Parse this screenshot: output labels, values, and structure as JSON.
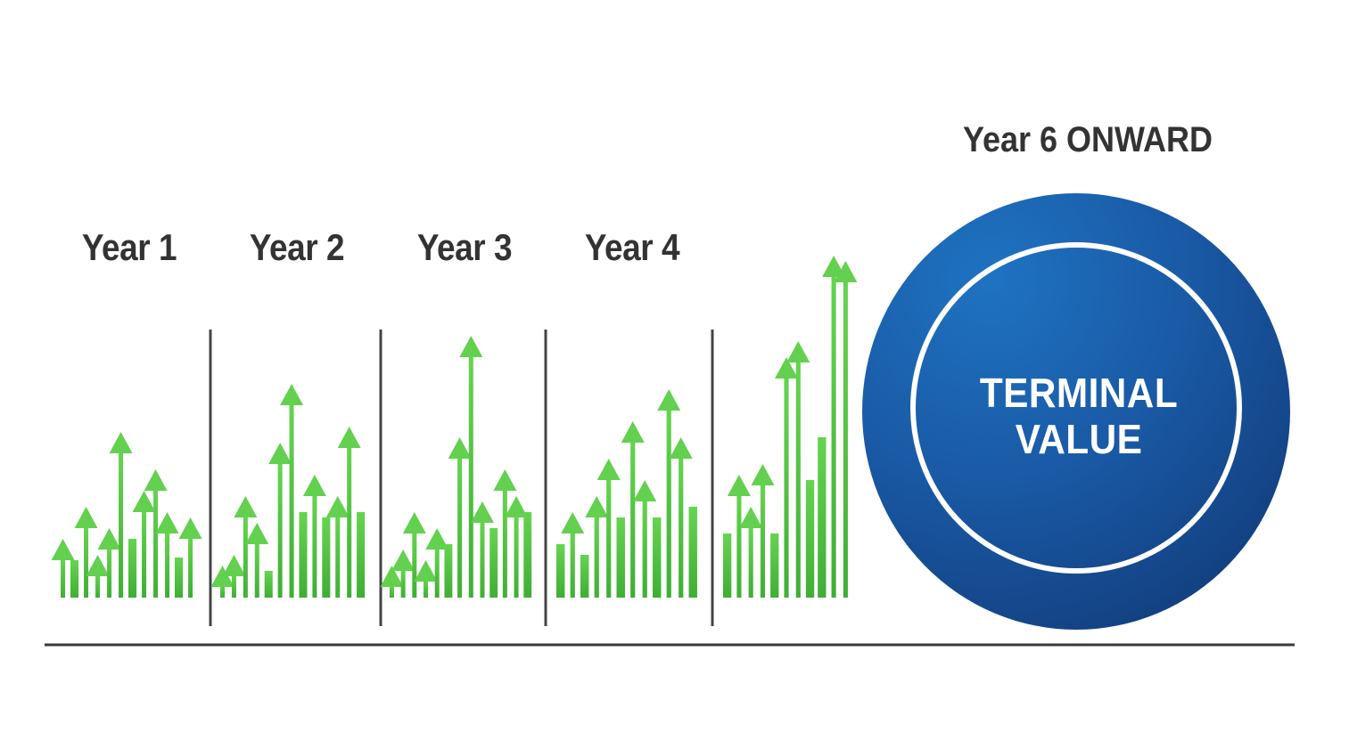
{
  "periods": [
    {
      "label": "Year 1",
      "bars": [
        {
          "h": 0.2,
          "arrow": true
        },
        {
          "h": 0.14,
          "arrow": false
        },
        {
          "h": 0.32,
          "arrow": true
        },
        {
          "h": 0.14,
          "arrow": true
        },
        {
          "h": 0.24,
          "arrow": true
        },
        {
          "h": 0.6,
          "arrow": true
        },
        {
          "h": 0.22,
          "arrow": false
        },
        {
          "h": 0.38,
          "arrow": true
        },
        {
          "h": 0.46,
          "arrow": true
        },
        {
          "h": 0.3,
          "arrow": true
        },
        {
          "h": 0.15,
          "arrow": false
        },
        {
          "h": 0.28,
          "arrow": true
        }
      ]
    },
    {
      "label": "Year 2",
      "bars": [
        {
          "h": 0.1,
          "arrow": true
        },
        {
          "h": 0.14,
          "arrow": true
        },
        {
          "h": 0.36,
          "arrow": true
        },
        {
          "h": 0.26,
          "arrow": true
        },
        {
          "h": 0.1,
          "arrow": false
        },
        {
          "h": 0.56,
          "arrow": true
        },
        {
          "h": 0.78,
          "arrow": true
        },
        {
          "h": 0.32,
          "arrow": false
        },
        {
          "h": 0.44,
          "arrow": true
        },
        {
          "h": 0.3,
          "arrow": false
        },
        {
          "h": 0.36,
          "arrow": true
        },
        {
          "h": 0.62,
          "arrow": true
        },
        {
          "h": 0.32,
          "arrow": false
        }
      ]
    },
    {
      "label": "Year 3",
      "bars": [
        {
          "h": 0.1,
          "arrow": true
        },
        {
          "h": 0.16,
          "arrow": true
        },
        {
          "h": 0.3,
          "arrow": true
        },
        {
          "h": 0.12,
          "arrow": true
        },
        {
          "h": 0.24,
          "arrow": true
        },
        {
          "h": 0.2,
          "arrow": false
        },
        {
          "h": 0.58,
          "arrow": true
        },
        {
          "h": 0.96,
          "arrow": true
        },
        {
          "h": 0.34,
          "arrow": true
        },
        {
          "h": 0.26,
          "arrow": false
        },
        {
          "h": 0.46,
          "arrow": true
        },
        {
          "h": 0.36,
          "arrow": true
        },
        {
          "h": 0.32,
          "arrow": false
        }
      ]
    },
    {
      "label": "Year 4",
      "bars": [
        {
          "h": 0.2,
          "arrow": false
        },
        {
          "h": 0.3,
          "arrow": true
        },
        {
          "h": 0.16,
          "arrow": false
        },
        {
          "h": 0.36,
          "arrow": true
        },
        {
          "h": 0.5,
          "arrow": true
        },
        {
          "h": 0.3,
          "arrow": false
        },
        {
          "h": 0.64,
          "arrow": true
        },
        {
          "h": 0.42,
          "arrow": true
        },
        {
          "h": 0.3,
          "arrow": false
        },
        {
          "h": 0.76,
          "arrow": true
        },
        {
          "h": 0.58,
          "arrow": true
        },
        {
          "h": 0.34,
          "arrow": false
        }
      ]
    },
    {
      "label": "",
      "bars": [
        {
          "h": 0.24,
          "arrow": false
        },
        {
          "h": 0.44,
          "arrow": true
        },
        {
          "h": 0.32,
          "arrow": true
        },
        {
          "h": 0.48,
          "arrow": true
        },
        {
          "h": 0.24,
          "arrow": false
        },
        {
          "h": 0.88,
          "arrow": true
        },
        {
          "h": 0.94,
          "arrow": true
        },
        {
          "h": 0.44,
          "arrow": false
        },
        {
          "h": 0.6,
          "arrow": false
        },
        {
          "h": 1.26,
          "arrow": true
        },
        {
          "h": 1.24,
          "arrow": true
        }
      ]
    }
  ],
  "onward": {
    "label": "Year 6 ONWARD",
    "circle_text_line1": "TERMINAL",
    "circle_text_line2": "VALUE"
  },
  "colors": {
    "bar_green": "#4dbe3e",
    "bar_green_light": "#63d04f",
    "label": "#333333",
    "divider": "#444444",
    "circle_outer": "#1b4f93",
    "circle_ring": "#ffffff",
    "baseline": "#3a3a3a"
  }
}
